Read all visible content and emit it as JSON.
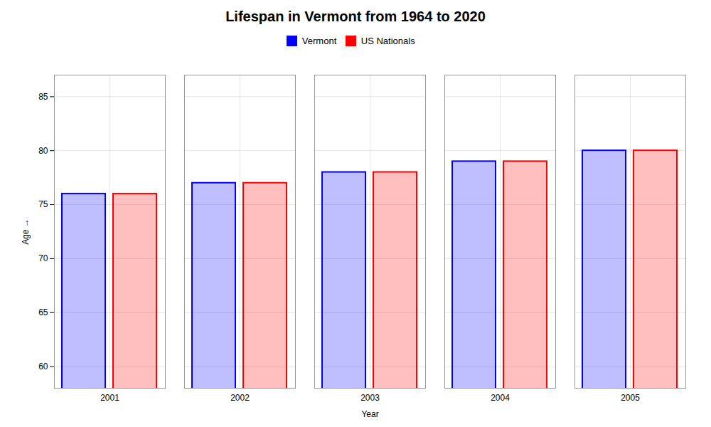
{
  "chart_data": {
    "type": "bar",
    "title": "Lifespan in Vermont from 1964 to 2020",
    "categories": [
      "2001",
      "2002",
      "2003",
      "2004",
      "2005"
    ],
    "series": [
      {
        "name": "Vermont",
        "color": "#0000ff",
        "values": [
          76,
          77,
          78,
          79,
          80
        ]
      },
      {
        "name": "US Nationals",
        "color": "#ff0000",
        "values": [
          76,
          77,
          78,
          79,
          80
        ]
      }
    ],
    "xlabel": "Year",
    "ylabel": "Age",
    "ylim": [
      58,
      87
    ],
    "yticks": [
      60,
      65,
      70,
      75,
      80,
      85
    ],
    "grid": true,
    "legend": "top"
  }
}
